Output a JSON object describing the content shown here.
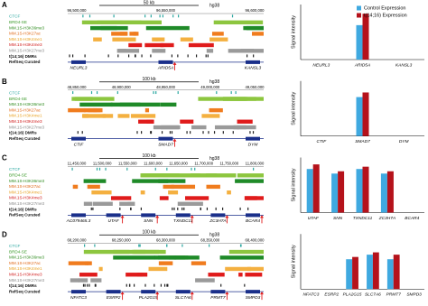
{
  "browsers": [
    {
      "label": "A",
      "scale": "50 kb",
      "assembly": "hg38",
      "coordinates": [
        "96,500,000",
        "96,550,000",
        "96,600,000"
      ],
      "tracks": [
        "CTCF",
        "BRD4-SE",
        "MM.1S-H3K36me3",
        "MM.1S-H3K27ac",
        "MM.1S-H3K4me1",
        "MM.1S-H3K4me3",
        "MM.1S-H3K27me3",
        "t(14;16) DMRs",
        "RefSeq Curated"
      ],
      "genes": [
        "NEURL3",
        "ARID5A",
        "KANSL3"
      ]
    },
    {
      "label": "B",
      "scale": "100 kb",
      "assembly": "hg38",
      "coordinates": [
        "48,850,000",
        "48,900,000",
        "48,950,000",
        "49,000,000",
        "49,050,000"
      ],
      "tracks": [
        "CTCF",
        "BRD4-SE",
        "MM.1S-H3K36me3",
        "MM.1S-H3K27ac",
        "MM.1S-H3K4me1",
        "MM.1S-H3K4me3",
        "MM.1S-H3K27me3",
        "t(14;16) DMRs",
        "RefSeq Curated"
      ],
      "genes": [
        "CTIF",
        "SMAD7",
        "DYM"
      ]
    },
    {
      "label": "C",
      "scale": "100 kb",
      "assembly": "hg38",
      "coordinates": [
        "11,450,000",
        "11,500,000",
        "11,550,000",
        "11,600,000",
        "11,650,000",
        "11,700,000",
        "11,750,000",
        "11,800,000"
      ],
      "tracks": [
        "CTCF",
        "BRD4-SE",
        "MM.1S-H3K36me3",
        "MM.1S-H3K27ac",
        "MM.1S-H3K4me1",
        "MM.1S-H3K4me3",
        "MM.1S-H3K27me3",
        "t(14;16) DMRs",
        "RefSeq Curated"
      ],
      "genes": [
        "AC079465.3",
        "UTAF",
        "SNN",
        "TXNDC11",
        "ZC3H7A",
        "BCAR4"
      ]
    },
    {
      "label": "D",
      "scale": "100 kb",
      "assembly": "hg38",
      "coordinates": [
        "68,200,000",
        "68,250,000",
        "68,300,000",
        "68,350,000",
        "68,400,000"
      ],
      "tracks": [
        "CTCF",
        "BRD4-SE",
        "MM.1S-H3K36me3",
        "MM.1S-H3K27ac",
        "MM.1S-H3K4me1",
        "MM.1S-H3K4me3",
        "MM.1S-H3K27me3",
        "t(14;16) DMRs",
        "RefSeq Curated"
      ],
      "genes": [
        "NFATC3",
        "ESRP2",
        "PLA2G15",
        "SLC7A6",
        "PRMT7",
        "SMPD3"
      ]
    }
  ],
  "chart_data": [
    {
      "type": "bar",
      "y_label": "Signal intensity",
      "legend": "top-right",
      "ylim": [
        0,
        12
      ],
      "categories": [
        "NEURL3",
        "ARID5A",
        "KANSL3"
      ],
      "series": [
        {
          "name": "Control Expression",
          "color": "#3fa9e0",
          "values": [
            0,
            7.5,
            0
          ]
        },
        {
          "name": "t(14;16) Expression",
          "color": "#b5121b",
          "values": [
            0,
            10,
            0
          ]
        }
      ]
    },
    {
      "type": "bar",
      "y_label": "Signal intensity",
      "ylim": [
        0,
        12
      ],
      "categories": [
        "CTIF",
        "SMAD7",
        "DYM"
      ],
      "series": [
        {
          "color": "#3fa9e0",
          "values": [
            0,
            8.5,
            0
          ]
        },
        {
          "color": "#b5121b",
          "values": [
            0,
            9.5,
            0
          ]
        }
      ]
    },
    {
      "type": "bar",
      "y_label": "Signal intensity",
      "ylim": [
        0,
        12
      ],
      "categories": [
        "UTAF",
        "SNN",
        "TXNDC11",
        "ZC3H7A",
        "BCAR4"
      ],
      "series": [
        {
          "color": "#3fa9e0",
          "values": [
            9.5,
            8.5,
            9.5,
            8.5,
            0
          ]
        },
        {
          "color": "#b5121b",
          "values": [
            10.5,
            9,
            10,
            9,
            0
          ]
        }
      ]
    },
    {
      "type": "bar",
      "y_label": "Signal intensity",
      "ylim": [
        0,
        12
      ],
      "categories": [
        "NFATC3",
        "ESRP2",
        "PLA2G15",
        "SLC7A6",
        "PRMT7",
        "SMPD3"
      ],
      "series": [
        {
          "color": "#3fa9e0",
          "values": [
            0,
            0,
            6.5,
            7.5,
            6.5,
            0
          ]
        },
        {
          "color": "#b5121b",
          "values": [
            0,
            0,
            7,
            8,
            7.5,
            0
          ]
        }
      ]
    }
  ]
}
